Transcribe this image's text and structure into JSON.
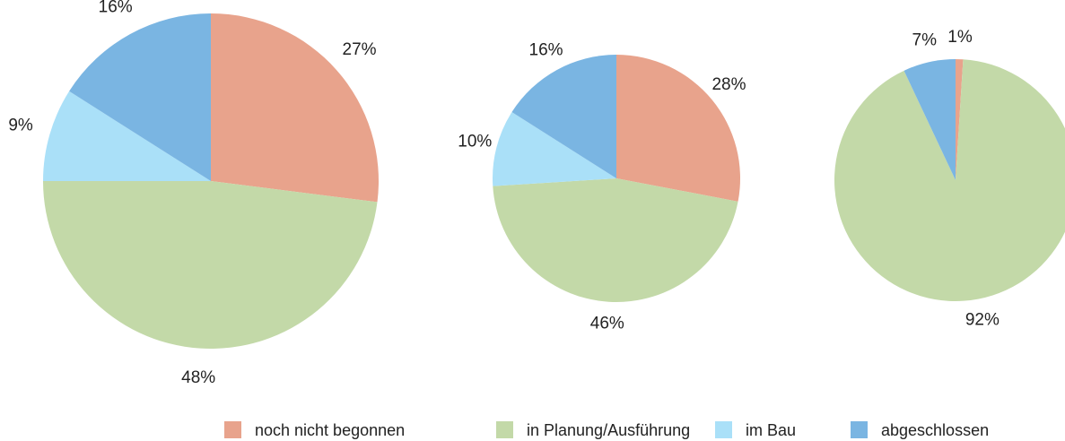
{
  "chart_data": [
    {
      "type": "pie",
      "categories": [
        "noch nicht begonnen",
        "in Planung/Ausführung",
        "im Bau",
        "abgeschlossen"
      ],
      "values": [
        27,
        48,
        9,
        16
      ],
      "value_labels": [
        "27%",
        "48%",
        "9%",
        "16%"
      ],
      "colors": [
        "#e8a38c",
        "#c3d9a8",
        "#aae0f8",
        "#7ab5e2"
      ]
    },
    {
      "type": "pie",
      "categories": [
        "noch nicht begonnen",
        "in Planung/Ausführung",
        "im Bau",
        "abgeschlossen"
      ],
      "values": [
        28,
        46,
        10,
        16
      ],
      "value_labels": [
        "28%",
        "46%",
        "10%",
        "16%"
      ],
      "colors": [
        "#e8a38c",
        "#c3d9a8",
        "#aae0f8",
        "#7ab5e2"
      ]
    },
    {
      "type": "pie",
      "categories": [
        "noch nicht begonnen",
        "in Planung/Ausführung",
        "abgeschlossen"
      ],
      "values": [
        1,
        92,
        7
      ],
      "value_labels": [
        "1%",
        "92%",
        "7%"
      ],
      "colors": [
        "#e8a38c",
        "#c3d9a8",
        "#7ab5e2"
      ]
    }
  ],
  "legend": [
    {
      "name": "noch nicht begonnen",
      "color": "#e8a38c"
    },
    {
      "name": "in Planung/Ausführung",
      "color": "#c3d9a8"
    },
    {
      "name": "im Bau",
      "color": "#aae0f8"
    },
    {
      "name": "abgeschlossen",
      "color": "#7ab5e2"
    }
  ]
}
